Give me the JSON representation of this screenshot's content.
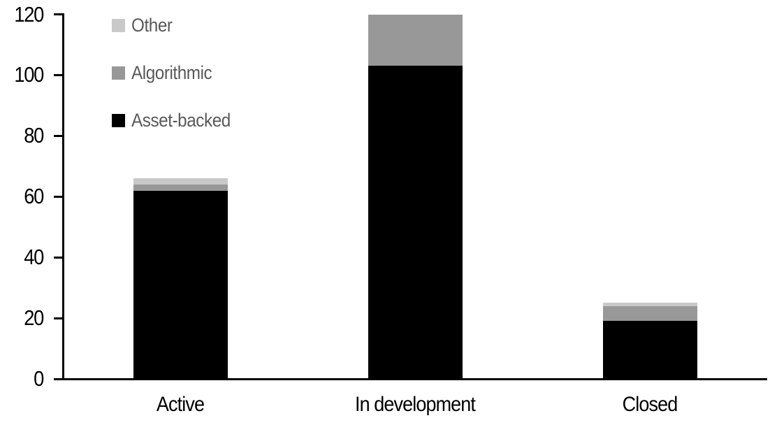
{
  "chart_data": {
    "type": "bar",
    "stacked": true,
    "title": "",
    "xlabel": "",
    "ylabel": "",
    "categories": [
      "Active",
      "In development",
      "Closed"
    ],
    "series": [
      {
        "name": "Asset-backed",
        "color": "#000000",
        "values": [
          62,
          103,
          19
        ]
      },
      {
        "name": "Algorithmic",
        "color": "#989898",
        "values": [
          2,
          17,
          5
        ]
      },
      {
        "name": "Other",
        "color": "#c9c9c9",
        "values": [
          2,
          0,
          1
        ]
      }
    ],
    "totals": [
      66,
      120,
      25
    ],
    "ylim": [
      0,
      120
    ],
    "yticks": [
      0,
      20,
      40,
      60,
      80,
      100,
      120
    ],
    "grid": false,
    "legend_position": "top-left",
    "legend_order": [
      "Other",
      "Algorithmic",
      "Asset-backed"
    ],
    "legend_text_color": "#595959",
    "axis_color": "#000000"
  }
}
